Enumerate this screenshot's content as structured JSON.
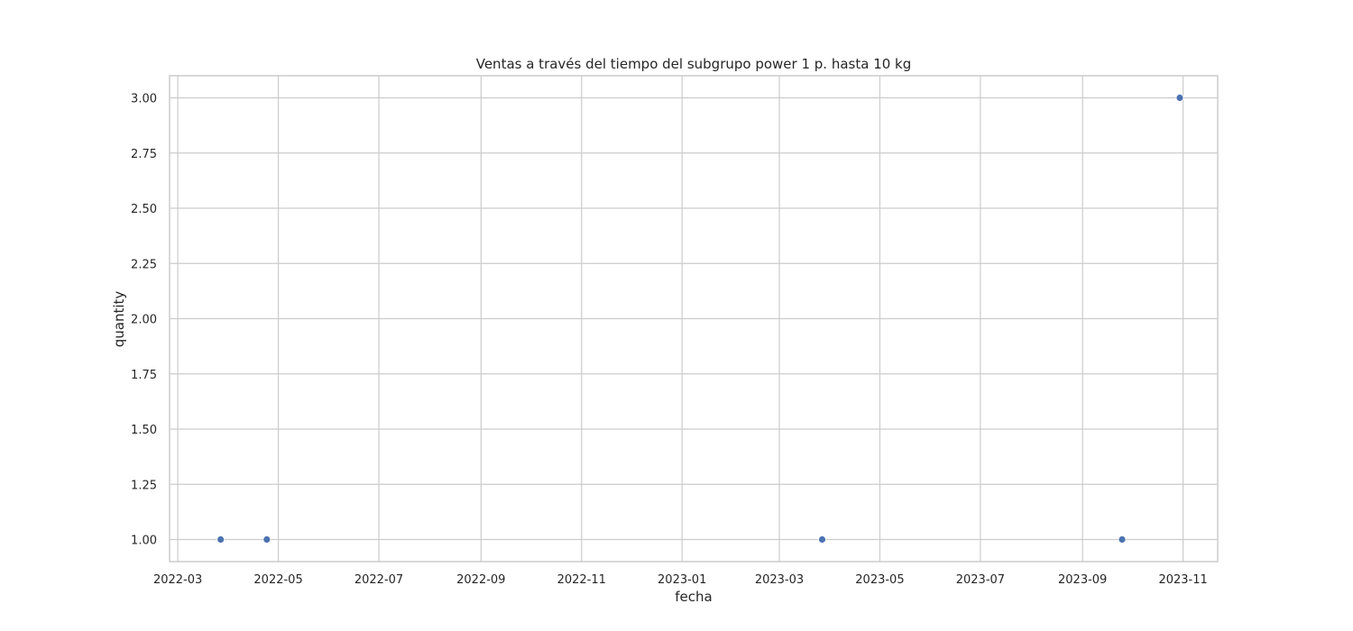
{
  "chart_data": {
    "type": "scatter",
    "title": "Ventas a través del tiempo del subgrupo power 1 p. hasta 10 kg",
    "xlabel": "fecha",
    "ylabel": "quantity",
    "x_ticks": [
      "2022-03",
      "2022-05",
      "2022-07",
      "2022-09",
      "2022-11",
      "2023-01",
      "2023-03",
      "2023-05",
      "2023-07",
      "2023-09",
      "2023-11"
    ],
    "y_ticks": [
      "1.00",
      "1.25",
      "1.50",
      "1.75",
      "2.00",
      "2.25",
      "2.50",
      "2.75",
      "3.00"
    ],
    "xlim": [
      "2022-02-24",
      "2023-11-22"
    ],
    "ylim": [
      0.9,
      3.1
    ],
    "grid": true,
    "color": "#4c72b0",
    "points": [
      {
        "x": "2022-03-27",
        "y": 1
      },
      {
        "x": "2022-04-24",
        "y": 1
      },
      {
        "x": "2023-03-27",
        "y": 1
      },
      {
        "x": "2023-09-25",
        "y": 1
      },
      {
        "x": "2023-10-30",
        "y": 3
      }
    ]
  }
}
